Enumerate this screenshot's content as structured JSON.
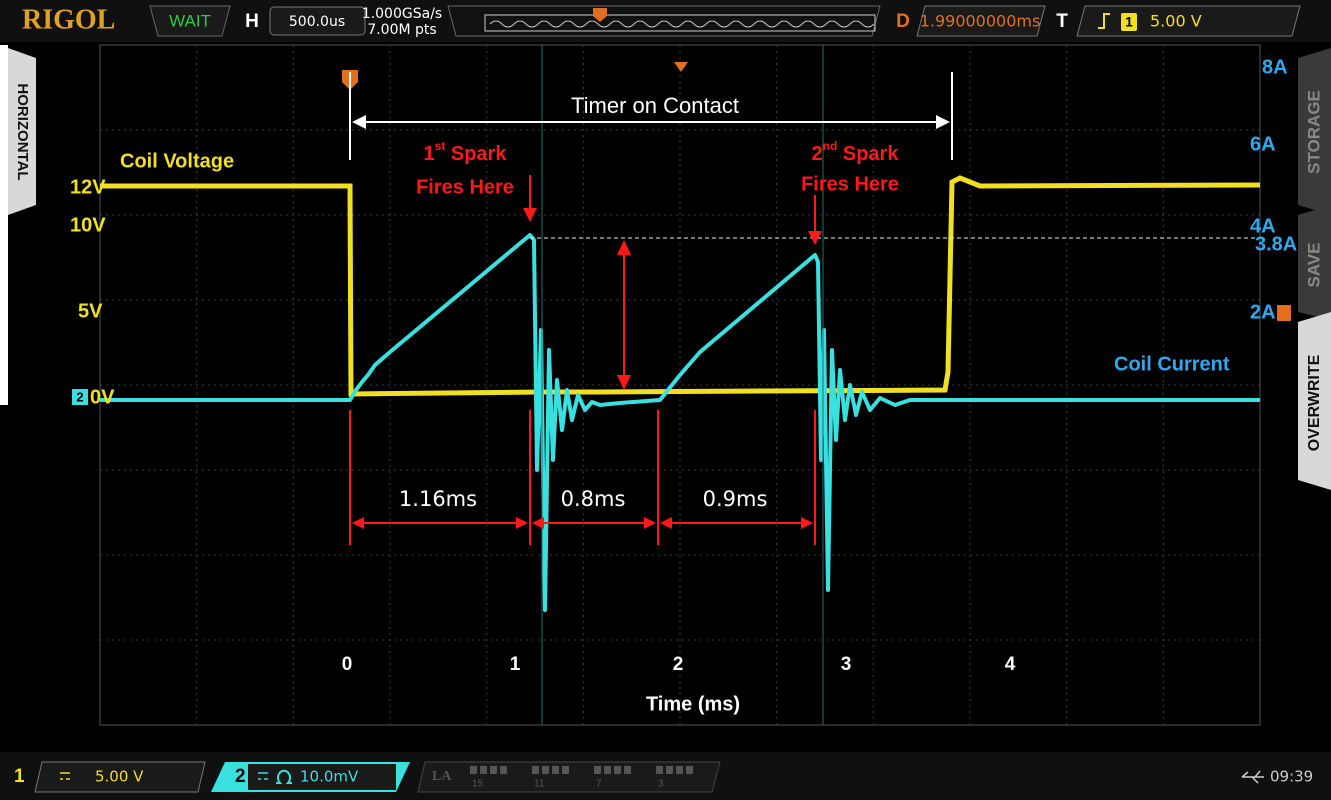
{
  "top_bar": {
    "brand": "RIGOL",
    "status": "WAIT",
    "h_label": "H",
    "timebase": "500.0us",
    "sample_rate": "1.000GSa/s",
    "memory_depth": "7.00M pts",
    "d_label": "D",
    "delay": "1.99000000ms",
    "t_label": "T",
    "trigger_source": "1",
    "trigger_level": "5.00 V"
  },
  "side_tabs": {
    "left": "HORIZONTAL",
    "right": [
      "STORAGE",
      "SAVE",
      "OVERWRITE"
    ]
  },
  "voltage_axis": {
    "title": "Coil Voltage",
    "labels": [
      "12V",
      "10V",
      "5V",
      "0V"
    ],
    "channel_marker": "2"
  },
  "current_axis": {
    "title": "Coil Current",
    "labels": [
      "8A",
      "6A",
      "4A",
      "3.8A",
      "2A"
    ]
  },
  "annotations": {
    "timer": "Timer on Contact",
    "spark1": {
      "number": "1",
      "suffix": "st",
      "label": " Spark",
      "line2": "Fires Here"
    },
    "spark2": {
      "number": "2",
      "suffix": "nd",
      "label": " Spark",
      "line2": "Fires Here"
    },
    "intervals": [
      "1.16ms",
      "0.8ms",
      "0.9ms"
    ]
  },
  "time_axis": {
    "labels": [
      "0",
      "1",
      "2",
      "3",
      "4"
    ],
    "title": "Time (ms)"
  },
  "bottom_bar": {
    "ch1_number": "1",
    "ch1_scale": "5.00 V",
    "ch2_number": "2",
    "ch2_scale": "10.0mV",
    "la_label": "LA",
    "la_groups": [
      "15",
      "11",
      "7",
      "3"
    ],
    "clock": "09:39"
  }
}
